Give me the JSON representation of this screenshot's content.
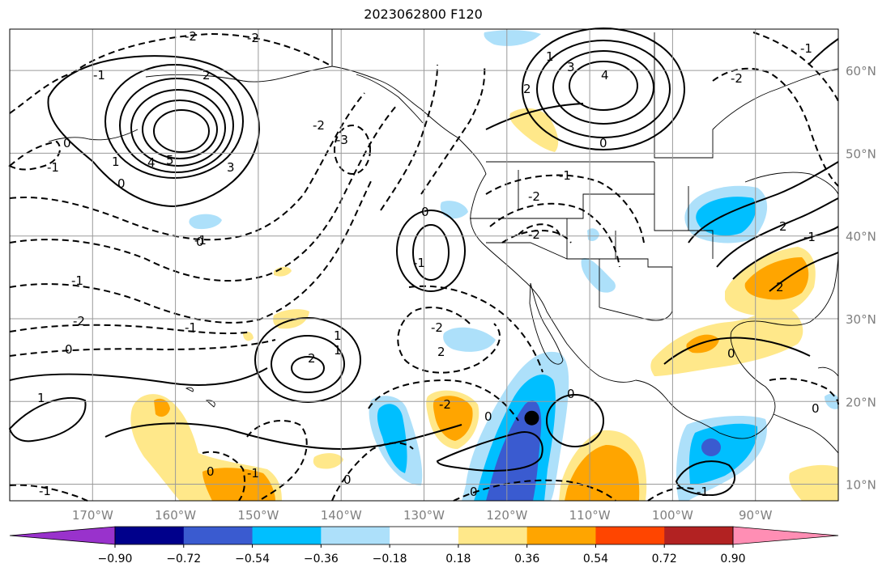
{
  "title": "2023062800 F120",
  "map": {
    "projection": "plate-carree",
    "lon_range": [
      -180,
      -80
    ],
    "lat_range": [
      8,
      65
    ],
    "grid": true,
    "lon_ticks": [
      {
        "value": -170,
        "label": "170°W"
      },
      {
        "value": -160,
        "label": "160°W"
      },
      {
        "value": -150,
        "label": "150°W"
      },
      {
        "value": -140,
        "label": "140°W"
      },
      {
        "value": -130,
        "label": "130°W"
      },
      {
        "value": -120,
        "label": "120°W"
      },
      {
        "value": -110,
        "label": "110°W"
      },
      {
        "value": -100,
        "label": "100°W"
      },
      {
        "value": -90,
        "label": "90°W"
      }
    ],
    "lat_ticks": [
      {
        "value": 10,
        "label": "10°N"
      },
      {
        "value": 20,
        "label": "20°N"
      },
      {
        "value": 30,
        "label": "30°N"
      },
      {
        "value": 40,
        "label": "40°N"
      },
      {
        "value": 50,
        "label": "50°N"
      },
      {
        "value": 60,
        "label": "60°N"
      }
    ],
    "marker": {
      "lon": -117,
      "lat": 18,
      "color": "#000000"
    },
    "contour_labels": [
      "-2",
      "0",
      "-1",
      "-2",
      "-1",
      "0",
      "1",
      "2",
      "3",
      "4",
      "5",
      "1",
      "2",
      "3",
      "4",
      "0",
      "-1",
      "-2",
      "-3",
      "-2",
      "-1",
      "0",
      "1",
      "2",
      "-1",
      "-2",
      "-1",
      "-2",
      "-1",
      "2",
      "2",
      "0",
      "-1",
      "-2",
      "0",
      "-1",
      "0",
      "0",
      "-1",
      "0",
      "1",
      "2",
      "-2",
      "-2",
      "-1",
      "0",
      "1",
      "0",
      "0",
      "0",
      "-1"
    ]
  },
  "colorbar": {
    "levels": [
      "−0.90",
      "−0.72",
      "−0.54",
      "−0.36",
      "−0.18",
      "0.18",
      "0.36",
      "0.54",
      "0.72",
      "0.90"
    ],
    "colors": [
      "#9932cc",
      "#00008b",
      "#3a5bd0",
      "#00bfff",
      "#ade0fa",
      "#ffffff",
      "#ffe88a",
      "#ffa500",
      "#ff4500",
      "#b22222",
      "#ff8eb4"
    ]
  }
}
